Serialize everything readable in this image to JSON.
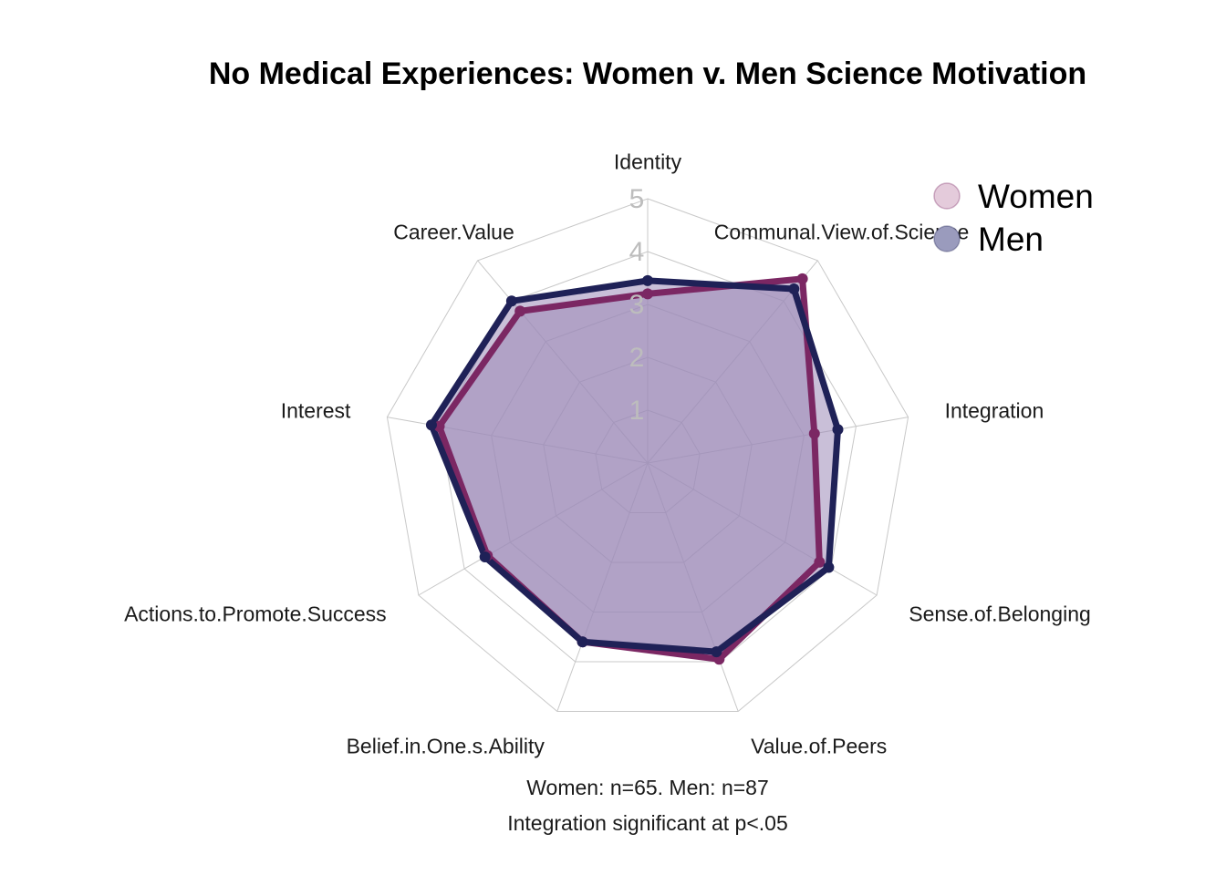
{
  "chart_data": {
    "type": "radar",
    "title": "No Medical Experiences: Women v. Men Science Motivation",
    "axes": [
      "Identity",
      "Communal.View.of.Science",
      "Integration",
      "Sense.of.Belonging",
      "Value.of.Peers",
      "Belief.in.One.s.Ability",
      "Actions.to.Promote.Success",
      "Interest",
      "Career.Value"
    ],
    "rlim": [
      0,
      5
    ],
    "ticks": [
      "1",
      "2",
      "3",
      "4",
      "5"
    ],
    "grid": true,
    "legend_position": "top-right",
    "series": [
      {
        "name": "Women",
        "color": "#7b2763",
        "legend_color": "#e4cbdb",
        "values": [
          3.2,
          4.55,
          3.2,
          3.75,
          3.95,
          3.6,
          3.5,
          4.0,
          3.75
        ]
      },
      {
        "name": "Men",
        "color": "#1f2157",
        "legend_color": "#9a9bbd",
        "values": [
          3.45,
          4.3,
          3.65,
          3.95,
          3.8,
          3.6,
          3.55,
          4.15,
          4.0
        ]
      }
    ],
    "fill_color": "#9d8ab8",
    "caption_lines": [
      "Women: n=65. Men: n=87",
      "Integration significant at p<.05"
    ]
  }
}
